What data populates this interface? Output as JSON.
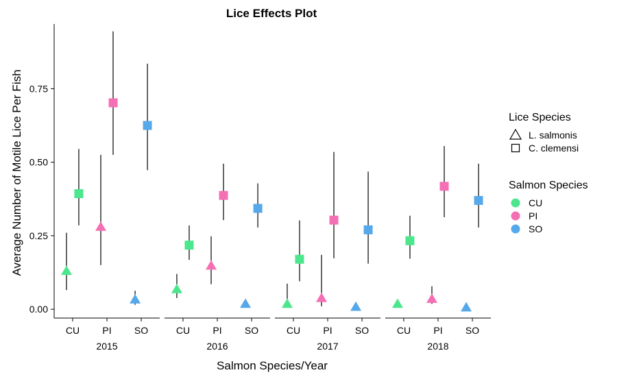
{
  "chart_data": {
    "type": "scatter",
    "title": "Lice Effects Plot",
    "xlabel": "Salmon Species/Year",
    "ylabel": "Average Number of Motile Lice Per Fish",
    "ylim": [
      -0.03,
      0.97
    ],
    "yticks": [
      "0.00",
      "0.25",
      "0.50",
      "0.75"
    ],
    "ytick_values": [
      0,
      0.25,
      0.5,
      0.75
    ],
    "panels": [
      "2015",
      "2016",
      "2017",
      "2018"
    ],
    "categories": [
      "CU",
      "PI",
      "SO"
    ],
    "grid": false,
    "legend_position": "right",
    "legend": {
      "shape_title": "Lice Species",
      "shape_items": [
        {
          "label": "L. salmonis",
          "shape": "triangle"
        },
        {
          "label": "C. clemensi",
          "shape": "square"
        }
      ],
      "color_title": "Salmon Species",
      "color_items": [
        {
          "label": "CU",
          "color": "#4ce68c"
        },
        {
          "label": "PI",
          "color": "#f46fb3"
        },
        {
          "label": "SO",
          "color": "#55a8ea"
        }
      ]
    },
    "series": [
      {
        "lice": "L. salmonis",
        "shape": "triangle",
        "points": [
          {
            "year": "2015",
            "species": "CU",
            "y": 0.13,
            "lo": 0.065,
            "hi": 0.26
          },
          {
            "year": "2015",
            "species": "PI",
            "y": 0.28,
            "lo": 0.15,
            "hi": 0.525
          },
          {
            "year": "2015",
            "species": "SO",
            "y": 0.033,
            "lo": 0.015,
            "hi": 0.063
          },
          {
            "year": "2016",
            "species": "CU",
            "y": 0.068,
            "lo": 0.038,
            "hi": 0.12
          },
          {
            "year": "2016",
            "species": "PI",
            "y": 0.148,
            "lo": 0.085,
            "hi": 0.248
          },
          {
            "year": "2016",
            "species": "SO",
            "y": 0.018,
            "lo": 0.008,
            "hi": 0.03
          },
          {
            "year": "2017",
            "species": "CU",
            "y": 0.018,
            "lo": 0.005,
            "hi": 0.087
          },
          {
            "year": "2017",
            "species": "PI",
            "y": 0.038,
            "lo": 0.01,
            "hi": 0.185
          },
          {
            "year": "2017",
            "species": "SO",
            "y": 0.008,
            "lo": 0.002,
            "hi": 0.02
          },
          {
            "year": "2018",
            "species": "CU",
            "y": 0.018,
            "lo": 0.008,
            "hi": 0.03
          },
          {
            "year": "2018",
            "species": "PI",
            "y": 0.035,
            "lo": 0.018,
            "hi": 0.078
          },
          {
            "year": "2018",
            "species": "SO",
            "y": 0.006,
            "lo": 0.002,
            "hi": 0.012
          }
        ]
      },
      {
        "lice": "C. clemensi",
        "shape": "square",
        "points": [
          {
            "year": "2015",
            "species": "CU",
            "y": 0.393,
            "lo": 0.285,
            "hi": 0.545
          },
          {
            "year": "2015",
            "species": "PI",
            "y": 0.702,
            "lo": 0.525,
            "hi": 0.945
          },
          {
            "year": "2015",
            "species": "SO",
            "y": 0.625,
            "lo": 0.473,
            "hi": 0.835
          },
          {
            "year": "2016",
            "species": "CU",
            "y": 0.218,
            "lo": 0.168,
            "hi": 0.285
          },
          {
            "year": "2016",
            "species": "PI",
            "y": 0.387,
            "lo": 0.303,
            "hi": 0.495
          },
          {
            "year": "2016",
            "species": "SO",
            "y": 0.343,
            "lo": 0.278,
            "hi": 0.428
          },
          {
            "year": "2017",
            "species": "CU",
            "y": 0.17,
            "lo": 0.095,
            "hi": 0.302
          },
          {
            "year": "2017",
            "species": "PI",
            "y": 0.303,
            "lo": 0.173,
            "hi": 0.535
          },
          {
            "year": "2017",
            "species": "SO",
            "y": 0.27,
            "lo": 0.155,
            "hi": 0.468
          },
          {
            "year": "2018",
            "species": "CU",
            "y": 0.233,
            "lo": 0.172,
            "hi": 0.318
          },
          {
            "year": "2018",
            "species": "PI",
            "y": 0.418,
            "lo": 0.313,
            "hi": 0.555
          },
          {
            "year": "2018",
            "species": "SO",
            "y": 0.37,
            "lo": 0.278,
            "hi": 0.495
          }
        ]
      }
    ]
  }
}
